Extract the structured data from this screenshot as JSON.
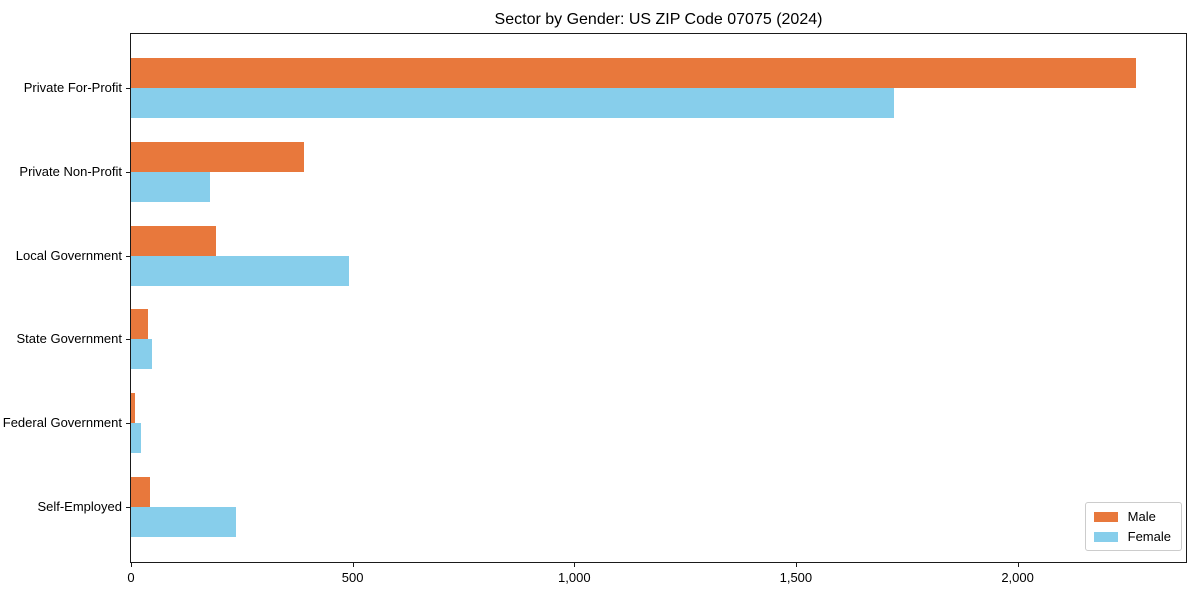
{
  "chart_data": {
    "type": "bar",
    "orientation": "horizontal",
    "title": "Sector by Gender: US ZIP Code 07075 (2024)",
    "categories": [
      "Private For-Profit",
      "Private Non-Profit",
      "Local Government",
      "State Government",
      "Federal Government",
      "Self-Employed"
    ],
    "series": [
      {
        "name": "Male",
        "color": "#e8783c",
        "values": [
          2266,
          390,
          191,
          38,
          9,
          43
        ]
      },
      {
        "name": "Female",
        "color": "#87ceeb",
        "values": [
          1722,
          178,
          491,
          47,
          22,
          237
        ]
      }
    ],
    "xlabel": "",
    "ylabel": "",
    "xlim": [
      0,
      2380
    ],
    "xticks": {
      "values": [
        0,
        500,
        1000,
        1500,
        2000
      ],
      "labels": [
        "0",
        "500",
        "1,000",
        "1,500",
        "2,000"
      ]
    },
    "grid": false,
    "legend": {
      "position": "lower right",
      "entries": [
        "Male",
        "Female"
      ]
    }
  }
}
